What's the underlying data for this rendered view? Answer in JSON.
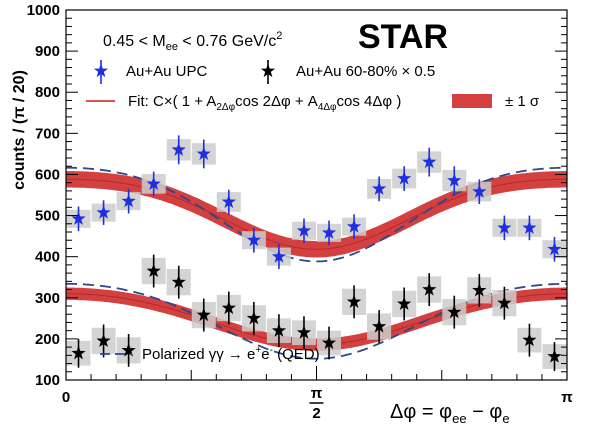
{
  "chart_data": {
    "type": "scatter",
    "title": "",
    "experiment_label": "STAR",
    "kinematic_cut": {
      "lhs": "0.45 < M",
      "sub": "ee",
      "rhs": " < 0.76 GeV/c",
      "sup": "2"
    },
    "ylabel": "counts  / (π / 20)",
    "xlabel": {
      "lhs": "Δφ = φ",
      "sub1": "ee",
      "mid": " − φ",
      "sub2": "e"
    },
    "xlim": [
      0,
      3.14159
    ],
    "ylim": [
      100,
      1000
    ],
    "x_ticks": [
      {
        "value": 0,
        "label": "0"
      },
      {
        "value": 1.5708,
        "label": "π",
        "label2": "2"
      },
      {
        "value": 3.14159,
        "label": "π"
      }
    ],
    "y_ticks": [
      100,
      200,
      300,
      400,
      500,
      600,
      700,
      800,
      900,
      1000
    ],
    "grid": false,
    "legend": {
      "upc": "Au+Au UPC",
      "peripheral": "Au+Au 60-80% × 0.5",
      "fit": "Fit: C×( 1 + A",
      "fit_sub1": "2Δφ",
      "fit_mid": "cos 2Δφ + A",
      "fit_sub2": "4Δφ",
      "fit_end": "cos 4Δφ )",
      "band": "± 1 σ",
      "qed": "Polarized γγ → e",
      "qed_sup1": "+",
      "qed_mid": "e",
      "qed_sup2": "-",
      "qed_end": " (QED)"
    },
    "colors": {
      "upc": "#1f2fe0",
      "peripheral": "#000000",
      "fit": "#d43a3a",
      "band": "#d44040",
      "qed": "#2a4a8a",
      "syst": "#cccccc"
    },
    "series": [
      {
        "name": "Au+Au UPC",
        "marker": "star-blue",
        "x": [
          0.0785,
          0.2356,
          0.3927,
          0.5498,
          0.7069,
          0.8639,
          1.021,
          1.1781,
          1.3352,
          1.4923,
          1.6493,
          1.8064,
          1.9635,
          2.1206,
          2.2777,
          2.4347,
          2.5918,
          2.7489,
          2.906,
          3.0631
        ],
        "y": [
          492,
          507,
          535,
          577,
          660,
          650,
          533,
          440,
          400,
          463,
          458,
          473,
          565,
          590,
          630,
          585,
          558,
          470,
          470,
          418
        ],
        "yerr": [
          30,
          30,
          30,
          30,
          35,
          35,
          30,
          30,
          30,
          30,
          30,
          30,
          30,
          30,
          35,
          35,
          30,
          30,
          30,
          30
        ],
        "syst": [
          22,
          22,
          22,
          24,
          26,
          26,
          24,
          22,
          22,
          22,
          22,
          22,
          24,
          24,
          26,
          26,
          24,
          22,
          22,
          22
        ]
      },
      {
        "name": "Au+Au 60-80% × 0.5",
        "marker": "star-black",
        "x": [
          0.0785,
          0.2356,
          0.3927,
          0.5498,
          0.7069,
          0.8639,
          1.021,
          1.1781,
          1.3352,
          1.4923,
          1.6493,
          1.8064,
          1.9635,
          2.1206,
          2.2777,
          2.4347,
          2.5918,
          2.7489,
          2.906,
          3.0631
        ],
        "y": [
          165,
          195,
          172,
          365,
          338,
          258,
          275,
          250,
          220,
          215,
          190,
          290,
          230,
          285,
          320,
          265,
          318,
          287,
          197,
          157
        ],
        "yerr": [
          35,
          40,
          40,
          40,
          40,
          40,
          40,
          40,
          40,
          40,
          40,
          40,
          40,
          40,
          40,
          40,
          40,
          40,
          40,
          35
        ],
        "syst": [
          30,
          32,
          32,
          32,
          32,
          32,
          32,
          32,
          30,
          30,
          30,
          32,
          32,
          32,
          32,
          32,
          32,
          32,
          30,
          30
        ]
      }
    ],
    "fit_curves": [
      {
        "name": "UPC fit",
        "C": 516,
        "A2": 0.165,
        "A4": -0.025,
        "band_halfwidth": 20
      },
      {
        "name": "peripheral fit",
        "C": 253,
        "A2": 0.245,
        "A4": -0.02,
        "band_halfwidth": 15
      }
    ],
    "qed_curves": [
      {
        "name": "UPC QED",
        "C": 518,
        "A2": 0.22,
        "A4": -0.03
      },
      {
        "name": "peripheral QED",
        "C": 253,
        "A2": 0.36,
        "A4": -0.04
      }
    ]
  }
}
